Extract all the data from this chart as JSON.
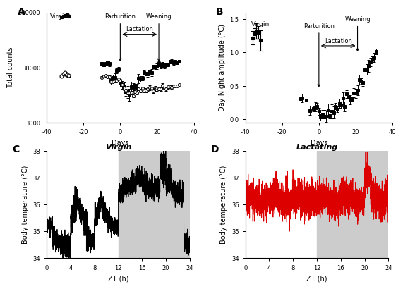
{
  "panel_A": {
    "label": "A",
    "xlabel": "Days",
    "ylabel": "Total counts",
    "xlim": [
      -40,
      40
    ],
    "ylim": [
      3000,
      300000
    ],
    "yticks": [
      3000,
      30000,
      300000
    ],
    "ytick_labels": [
      "3000",
      "30000",
      "300000"
    ],
    "xticks": [
      -40,
      -20,
      0,
      20,
      40
    ],
    "virgin_label": "Virgin",
    "parturition_label": "Parturition",
    "weaning_label": "Weaning",
    "lactation_label": "Lactation"
  },
  "panel_B": {
    "label": "B",
    "xlabel": "Days",
    "ylabel": "Day-Night amplitude (°C)",
    "xlim": [
      -40,
      40
    ],
    "ylim": [
      -0.05,
      1.6
    ],
    "yticks": [
      0.0,
      0.5,
      1.0,
      1.5
    ],
    "xticks": [
      -40,
      -20,
      0,
      20,
      40
    ],
    "virgin_label": "Virgin",
    "parturition_label": "Parturition",
    "weaning_label": "Weaning",
    "lactation_label": "Lactation"
  },
  "panel_C": {
    "label": "C",
    "title": "Virgin",
    "xlabel": "ZT (h)",
    "ylabel": "Body temperature (°C)",
    "xlim": [
      0,
      24
    ],
    "ylim": [
      34,
      38
    ],
    "yticks": [
      34,
      35,
      36,
      37,
      38
    ],
    "xticks": [
      0,
      4,
      8,
      12,
      16,
      20,
      24
    ],
    "night_start": 12,
    "night_end": 24,
    "color": "black",
    "bg_color": "#cccccc"
  },
  "panel_D": {
    "label": "D",
    "title": "Lactating",
    "xlabel": "ZT (h)",
    "ylabel": "Body temperature (°C)",
    "xlim": [
      0,
      24
    ],
    "ylim": [
      34,
      38
    ],
    "yticks": [
      34,
      35,
      36,
      37,
      38
    ],
    "xticks": [
      0,
      4,
      8,
      12,
      16,
      20,
      24
    ],
    "night_start": 12,
    "night_end": 24,
    "color": "#dd0000",
    "bg_color": "#cccccc"
  }
}
